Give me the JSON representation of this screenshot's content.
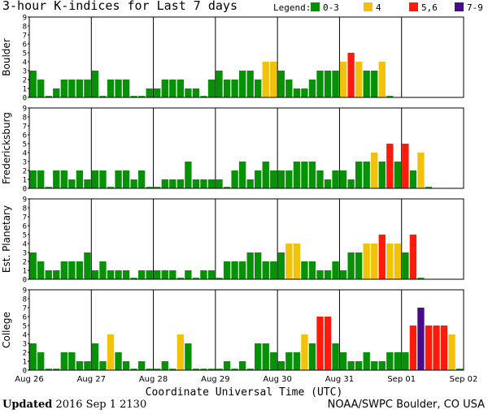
{
  "title": "3-hour K-indices for Last 7 days",
  "legend": {
    "label": "Legend:",
    "items": [
      {
        "label": "0-3",
        "color": "#079107"
      },
      {
        "label": "4",
        "color": "#f2c20a"
      },
      {
        "label": "5,6",
        "color": "#ff1a0a"
      },
      {
        "label": "7-9",
        "color": "#4a0a8c"
      }
    ]
  },
  "footer": {
    "updated_label": "Updated",
    "updated_value": "2016 Sep  1 2130",
    "credit": "NOAA/SWPC Boulder, CO USA"
  },
  "chart_data": {
    "type": "bar",
    "xlabel": "Coordinate Universal Time (UTC)",
    "x_ticks": [
      "Aug 26",
      "Aug 27",
      "Aug 28",
      "Aug 29",
      "Aug 30",
      "Aug 31",
      "Sep 01",
      "Sep 02"
    ],
    "y_ticks": [
      0,
      1,
      2,
      3,
      4,
      5,
      6,
      7,
      8,
      9
    ],
    "ylim": [
      0,
      9
    ],
    "interval_hours": 3,
    "color_scale": {
      "0-3": "#079107",
      "4": "#f2c20a",
      "5,6": "#ff1a0a",
      "7-9": "#4a0a8c"
    },
    "panels": [
      {
        "name": "Boulder",
        "values": [
          3,
          2,
          0,
          1,
          2,
          2,
          2,
          2,
          3,
          0,
          2,
          2,
          2,
          0,
          0,
          1,
          1,
          2,
          2,
          2,
          1,
          1,
          0,
          2,
          3,
          2,
          2,
          3,
          3,
          2,
          4,
          4,
          3,
          2,
          1,
          1,
          2,
          3,
          3,
          3,
          4,
          5,
          4,
          3,
          3,
          4,
          0
        ]
      },
      {
        "name": "Fredericksburg",
        "values": [
          2,
          2,
          0,
          2,
          2,
          1,
          2,
          1,
          2,
          2,
          0,
          2,
          2,
          1,
          2,
          0,
          0,
          1,
          1,
          1,
          3,
          1,
          1,
          1,
          1,
          0,
          2,
          3,
          1,
          2,
          3,
          2,
          2,
          2,
          3,
          3,
          3,
          2,
          1,
          2,
          2,
          1,
          3,
          3,
          4,
          3,
          5,
          3,
          5,
          2,
          4,
          0
        ]
      },
      {
        "name": "Est. Planetary",
        "values": [
          3,
          2,
          1,
          1,
          2,
          2,
          2,
          3,
          1,
          2,
          1,
          1,
          1,
          0,
          1,
          1,
          1,
          1,
          1,
          0,
          1,
          0,
          1,
          1,
          0,
          2,
          2,
          2,
          3,
          3,
          2,
          2,
          3,
          4,
          4,
          2,
          2,
          1,
          1,
          2,
          1,
          3,
          3,
          4,
          4,
          5,
          4,
          4,
          3,
          5,
          0
        ]
      },
      {
        "name": "College",
        "values": [
          3,
          2,
          0,
          0,
          2,
          2,
          1,
          1,
          3,
          1,
          4,
          2,
          1,
          0,
          1,
          0,
          0,
          1,
          0,
          4,
          3,
          0,
          0,
          0,
          0,
          1,
          0,
          1,
          0,
          3,
          3,
          2,
          1,
          2,
          2,
          4,
          3,
          6,
          6,
          3,
          2,
          1,
          1,
          2,
          1,
          1,
          2,
          2,
          2,
          5,
          7,
          5,
          5,
          5,
          4,
          0
        ]
      }
    ]
  }
}
